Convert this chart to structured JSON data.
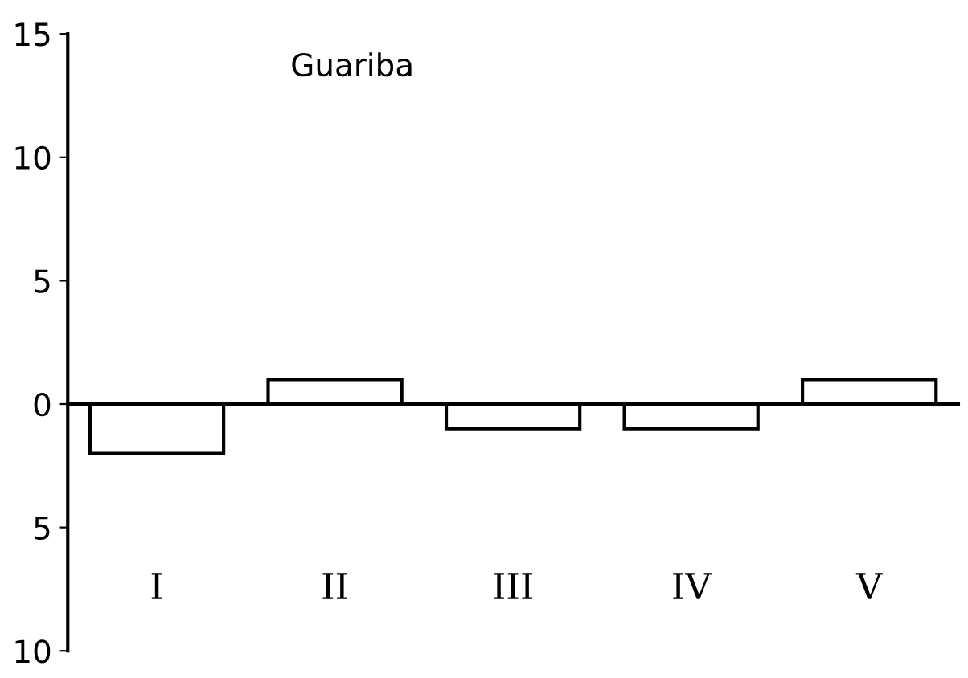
{
  "chart_data": {
    "type": "bar",
    "title": "Guariba",
    "categories": [
      "I",
      "II",
      "III",
      "IV",
      "V"
    ],
    "values": [
      -2,
      1,
      -1,
      -1,
      1
    ],
    "color": "#000000",
    "ylim": [
      -10,
      15
    ],
    "yticks": [
      {
        "value": -10,
        "label": "10"
      },
      {
        "value": -5,
        "label": "5"
      },
      0,
      5,
      10,
      15
    ]
  }
}
